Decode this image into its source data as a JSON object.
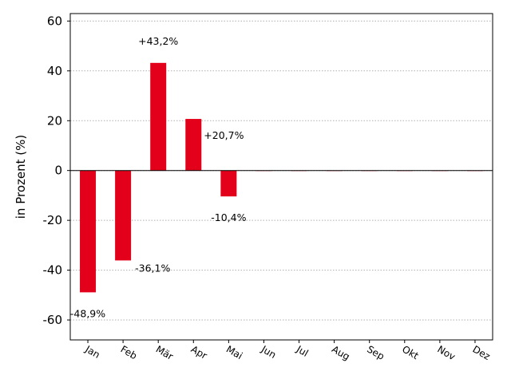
{
  "chart_data": {
    "type": "bar",
    "ylabel": "in Prozent (%)",
    "categories": [
      "Jan",
      "Feb",
      "Mär",
      "Apr",
      "Mai",
      "Jun",
      "Jul",
      "Aug",
      "Sep",
      "Okt",
      "Nov",
      "Dez"
    ],
    "values": [
      -48.9,
      -36.1,
      43.2,
      20.7,
      -10.4,
      0,
      0,
      0,
      0,
      0,
      0,
      0
    ],
    "data_labels": [
      "-48,9%",
      "-36,1%",
      "+43,2%",
      "+20,7%",
      "-10,4%",
      "",
      "",
      "",
      "",
      "",
      "",
      ""
    ],
    "ylim": [
      -68,
      63
    ],
    "yticks": [
      60,
      40,
      20,
      0,
      -20,
      -40,
      -60
    ],
    "ytick_labels": [
      "60",
      "40",
      "20",
      "0",
      "-20",
      "-40",
      "-60"
    ],
    "grid": "horizontal dotted",
    "bar_color": "#e2001a",
    "zero_line_color": "#000000"
  }
}
